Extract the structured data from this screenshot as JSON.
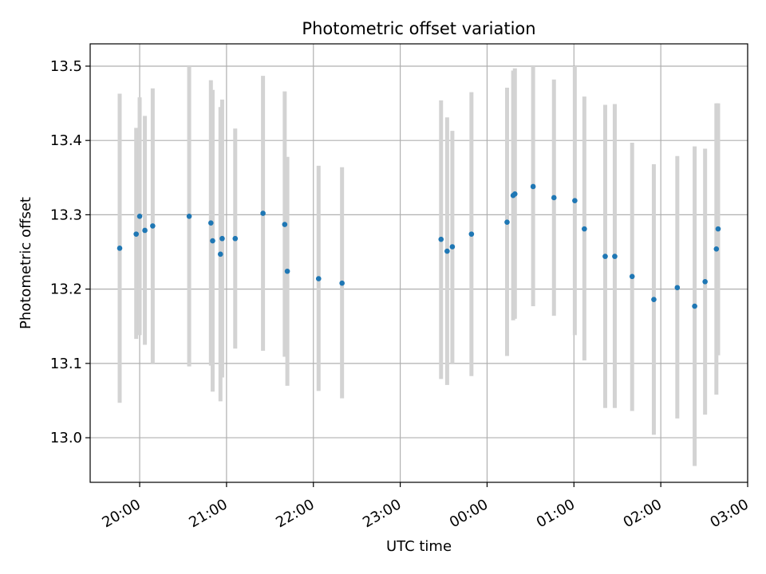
{
  "chart_data": {
    "type": "scatter",
    "title": "Photometric offset variation",
    "xlabel": "UTC time",
    "ylabel": "Photometric offset",
    "x_unit": "hours",
    "xlim": [
      19.43,
      27.0
    ],
    "ylim": [
      12.94,
      13.53
    ],
    "grid": true,
    "x_ticks": [
      {
        "value": 20,
        "label": "20:00"
      },
      {
        "value": 21,
        "label": "21:00"
      },
      {
        "value": 22,
        "label": "22:00"
      },
      {
        "value": 23,
        "label": "23:00"
      },
      {
        "value": 24,
        "label": "00:00"
      },
      {
        "value": 25,
        "label": "01:00"
      },
      {
        "value": 26,
        "label": "02:00"
      },
      {
        "value": 27,
        "label": "03:00"
      }
    ],
    "y_ticks": [
      {
        "value": 13.0,
        "label": "13.0"
      },
      {
        "value": 13.1,
        "label": "13.1"
      },
      {
        "value": 13.2,
        "label": "13.2"
      },
      {
        "value": 13.3,
        "label": "13.3"
      },
      {
        "value": 13.4,
        "label": "13.4"
      },
      {
        "value": 13.5,
        "label": "13.5"
      }
    ],
    "colors": {
      "point": "#1f77b4",
      "errorbar": "#d3d3d3",
      "grid": "#b0b0b0"
    },
    "points": [
      {
        "x": 19.77,
        "y": 13.255,
        "ylo": 13.047,
        "yhi": 13.463
      },
      {
        "x": 19.96,
        "y": 13.274,
        "ylo": 13.133,
        "yhi": 13.417
      },
      {
        "x": 20.0,
        "y": 13.298,
        "ylo": 13.138,
        "yhi": 13.458
      },
      {
        "x": 20.06,
        "y": 13.279,
        "ylo": 13.125,
        "yhi": 13.433
      },
      {
        "x": 20.15,
        "y": 13.285,
        "ylo": 13.1,
        "yhi": 13.47
      },
      {
        "x": 20.57,
        "y": 13.298,
        "ylo": 13.096,
        "yhi": 13.5
      },
      {
        "x": 20.82,
        "y": 13.289,
        "ylo": 13.097,
        "yhi": 13.481
      },
      {
        "x": 20.84,
        "y": 13.265,
        "ylo": 13.062,
        "yhi": 13.468
      },
      {
        "x": 20.93,
        "y": 13.247,
        "ylo": 13.049,
        "yhi": 13.445
      },
      {
        "x": 20.95,
        "y": 13.268,
        "ylo": 13.081,
        "yhi": 13.455
      },
      {
        "x": 21.1,
        "y": 13.268,
        "ylo": 13.12,
        "yhi": 13.416
      },
      {
        "x": 21.42,
        "y": 13.302,
        "ylo": 13.117,
        "yhi": 13.487
      },
      {
        "x": 21.67,
        "y": 13.287,
        "ylo": 13.109,
        "yhi": 13.466
      },
      {
        "x": 21.7,
        "y": 13.224,
        "ylo": 13.07,
        "yhi": 13.378
      },
      {
        "x": 22.06,
        "y": 13.214,
        "ylo": 13.063,
        "yhi": 13.366
      },
      {
        "x": 22.33,
        "y": 13.208,
        "ylo": 13.053,
        "yhi": 13.364
      },
      {
        "x": 23.47,
        "y": 13.267,
        "ylo": 13.079,
        "yhi": 13.454
      },
      {
        "x": 23.54,
        "y": 13.251,
        "ylo": 13.071,
        "yhi": 13.431
      },
      {
        "x": 23.6,
        "y": 13.257,
        "ylo": 13.1,
        "yhi": 13.413
      },
      {
        "x": 23.82,
        "y": 13.274,
        "ylo": 13.083,
        "yhi": 13.465
      },
      {
        "x": 24.23,
        "y": 13.29,
        "ylo": 13.11,
        "yhi": 13.471
      },
      {
        "x": 24.3,
        "y": 13.326,
        "ylo": 13.158,
        "yhi": 13.494
      },
      {
        "x": 24.32,
        "y": 13.328,
        "ylo": 13.16,
        "yhi": 13.497
      },
      {
        "x": 24.53,
        "y": 13.338,
        "ylo": 13.177,
        "yhi": 13.5
      },
      {
        "x": 24.77,
        "y": 13.323,
        "ylo": 13.164,
        "yhi": 13.482
      },
      {
        "x": 25.01,
        "y": 13.319,
        "ylo": 13.138,
        "yhi": 13.5
      },
      {
        "x": 25.12,
        "y": 13.281,
        "ylo": 13.104,
        "yhi": 13.459
      },
      {
        "x": 25.36,
        "y": 13.244,
        "ylo": 13.04,
        "yhi": 13.448
      },
      {
        "x": 25.47,
        "y": 13.244,
        "ylo": 13.04,
        "yhi": 13.449
      },
      {
        "x": 25.67,
        "y": 13.217,
        "ylo": 13.036,
        "yhi": 13.397
      },
      {
        "x": 25.92,
        "y": 13.186,
        "ylo": 13.004,
        "yhi": 13.368
      },
      {
        "x": 26.19,
        "y": 13.202,
        "ylo": 13.026,
        "yhi": 13.379
      },
      {
        "x": 26.39,
        "y": 13.177,
        "ylo": 12.962,
        "yhi": 13.392
      },
      {
        "x": 26.51,
        "y": 13.21,
        "ylo": 13.031,
        "yhi": 13.389
      },
      {
        "x": 26.64,
        "y": 13.254,
        "ylo": 13.058,
        "yhi": 13.45
      },
      {
        "x": 26.66,
        "y": 13.281,
        "ylo": 13.111,
        "yhi": 13.45
      }
    ]
  }
}
